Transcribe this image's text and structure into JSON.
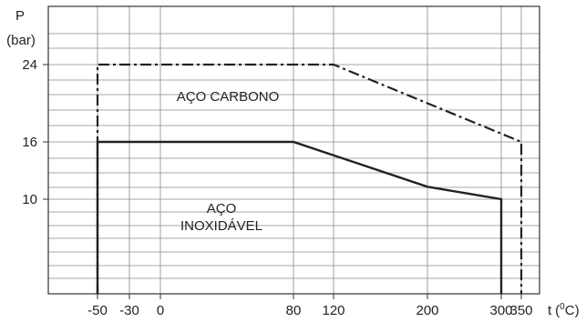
{
  "chart_data": {
    "type": "line",
    "ylabel": "P",
    "yunit": "(bar)",
    "xlabel": "t",
    "xunit_prefix": "(",
    "xunit_sup": "0",
    "xunit_rest": "C)",
    "x_ticks": [
      {
        "value": -50,
        "label": "-50"
      },
      {
        "value": -30,
        "label": "-30"
      },
      {
        "value": 0,
        "label": "0"
      },
      {
        "value": 80,
        "label": "80"
      },
      {
        "value": 120,
        "label": "120"
      },
      {
        "value": 200,
        "label": "200"
      },
      {
        "value": 300,
        "label": "300"
      },
      {
        "value": 350,
        "label": "350"
      }
    ],
    "y_ticks": [
      {
        "value": 10,
        "label": "10"
      },
      {
        "value": 16,
        "label": "16"
      },
      {
        "value": 24,
        "label": "24"
      }
    ],
    "grid": true,
    "series": [
      {
        "name": "AÇO CARBONO",
        "style": "dash-dot",
        "color": "#222222",
        "x": [
          -50,
          -50,
          120,
          350,
          350
        ],
        "y": [
          0,
          24,
          24,
          16,
          0
        ]
      },
      {
        "name": "AÇO INOXIDÁVEL",
        "style": "solid",
        "color": "#222222",
        "x": [
          -50,
          -50,
          80,
          200,
          300,
          300
        ],
        "y": [
          0,
          16,
          16,
          11.3,
          10,
          0
        ]
      }
    ],
    "annotations": [
      {
        "text": "AÇO CARBONO"
      },
      {
        "text": "AÇO"
      },
      {
        "text": "INOXIDÁVEL"
      }
    ]
  }
}
